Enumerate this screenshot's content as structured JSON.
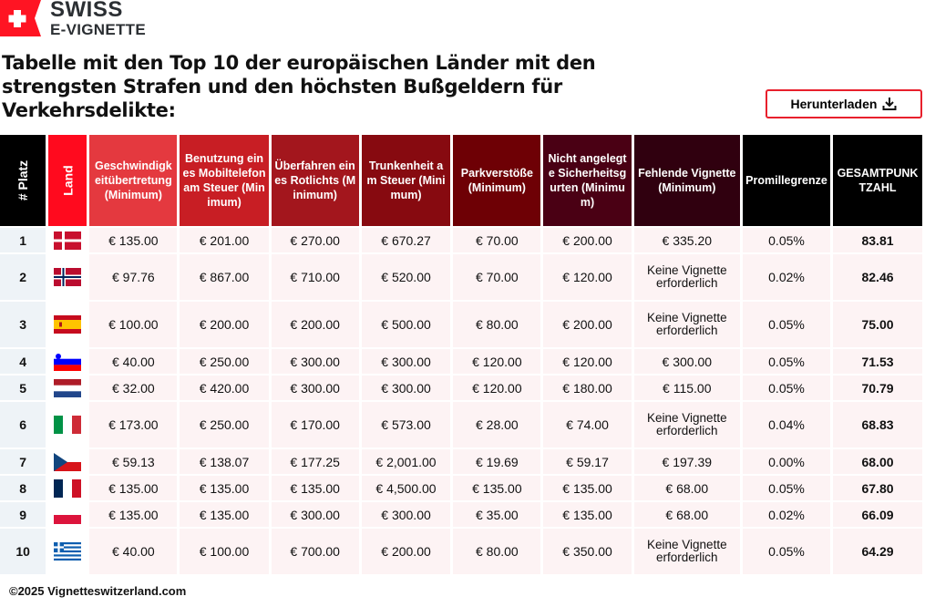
{
  "logo": {
    "line1": "SWISS",
    "line2": "E-VIGNETTE"
  },
  "title": "Tabelle mit den Top 10 der europäischen Länder mit den strengsten Strafen und den höchsten Bußgeldern für Verkehrsdelikte:",
  "download": {
    "label": "Herunterladen",
    "icon": "download-icon"
  },
  "colors": {
    "accent": "#e8202c"
  },
  "table": {
    "headers": [
      {
        "label": "# Platz",
        "bg": "#000000",
        "rot": true
      },
      {
        "label": "Land",
        "bg": "#ff0a1e",
        "rot": true
      },
      {
        "label": "Geschwindigkeitübertretung (Minimum)",
        "bg": "#e4393f"
      },
      {
        "label": "Benutzung eines Mobiltelefon am Steuer (Minimum)",
        "bg": "#c81e24"
      },
      {
        "label": "Überfahren eines Rotlichts (Minimum)",
        "bg": "#a3161d"
      },
      {
        "label": "Trunkenheit am Steuer (Minimum)",
        "bg": "#870a10"
      },
      {
        "label": "Parkverstöße (Minimum)",
        "bg": "#6e0005"
      },
      {
        "label": "Nicht angelegte Sicherheitsgurten (Minimum)",
        "bg": "#4a0014"
      },
      {
        "label": "Fehlende Vignette (Minimum)",
        "bg": "#30000f"
      },
      {
        "label": "Promillegrenze",
        "bg": "#000000"
      },
      {
        "label": "GESAMTPUNKTZAHL",
        "bg": "#000000"
      }
    ],
    "rows": [
      {
        "rank": "1",
        "flag": "dk",
        "cells": [
          "€ 135.00",
          "€ 201.00",
          "€ 270.00",
          "€ 670.27",
          "€ 70.00",
          "€ 200.00",
          "€ 335.20",
          "0.05%"
        ],
        "total": "83.81"
      },
      {
        "rank": "2",
        "flag": "no",
        "cells": [
          "€ 97.76",
          "€ 867.00",
          "€ 710.00",
          "€ 520.00",
          "€ 70.00",
          "€ 120.00",
          "Keine Vignette erforderlich",
          "0.02%"
        ],
        "total": "82.46"
      },
      {
        "rank": "3",
        "flag": "es",
        "cells": [
          "€ 100.00",
          "€ 200.00",
          "€ 200.00",
          "€ 500.00",
          "€ 80.00",
          "€ 200.00",
          "Keine Vignette erforderlich",
          "0.05%"
        ],
        "total": "75.00"
      },
      {
        "rank": "4",
        "flag": "si",
        "cells": [
          "€ 40.00",
          "€ 250.00",
          "€ 300.00",
          "€ 300.00",
          "€ 120.00",
          "€ 120.00",
          "€ 300.00",
          "0.05%"
        ],
        "total": "71.53"
      },
      {
        "rank": "5",
        "flag": "nl",
        "cells": [
          "€ 32.00",
          "€ 420.00",
          "€ 300.00",
          "€ 300.00",
          "€ 120.00",
          "€ 180.00",
          "€ 115.00",
          "0.05%"
        ],
        "total": "70.79"
      },
      {
        "rank": "6",
        "flag": "it",
        "cells": [
          "€ 173.00",
          "€ 250.00",
          "€ 170.00",
          "€ 573.00",
          "€ 28.00",
          "€ 74.00",
          "Keine Vignette erforderlich",
          "0.04%"
        ],
        "total": "68.83"
      },
      {
        "rank": "7",
        "flag": "cz",
        "cells": [
          "€ 59.13",
          "€ 138.07",
          "€ 177.25",
          "€ 2,001.00",
          "€ 19.69",
          "€ 59.17",
          "€ 197.39",
          "0.00%"
        ],
        "total": "68.00"
      },
      {
        "rank": "8",
        "flag": "fr",
        "cells": [
          "€ 135.00",
          "€ 135.00",
          "€ 135.00",
          "€ 4,500.00",
          "€ 135.00",
          "€ 135.00",
          "€ 68.00",
          "0.05%"
        ],
        "total": "67.80"
      },
      {
        "rank": "9",
        "flag": "pl",
        "cells": [
          "€ 135.00",
          "€ 135.00",
          "€ 300.00",
          "€ 300.00",
          "€ 35.00",
          "€ 135.00",
          "€ 68.00",
          "0.02%"
        ],
        "total": "66.09"
      },
      {
        "rank": "10",
        "flag": "gr",
        "cells": [
          "€ 40.00",
          "€ 100.00",
          "€ 700.00",
          "€ 200.00",
          "€ 80.00",
          "€ 350.00",
          "Keine Vignette erforderlich",
          "0.05%"
        ],
        "total": "64.29"
      }
    ]
  },
  "footer": "©2025 Vignetteswitzerland.com"
}
